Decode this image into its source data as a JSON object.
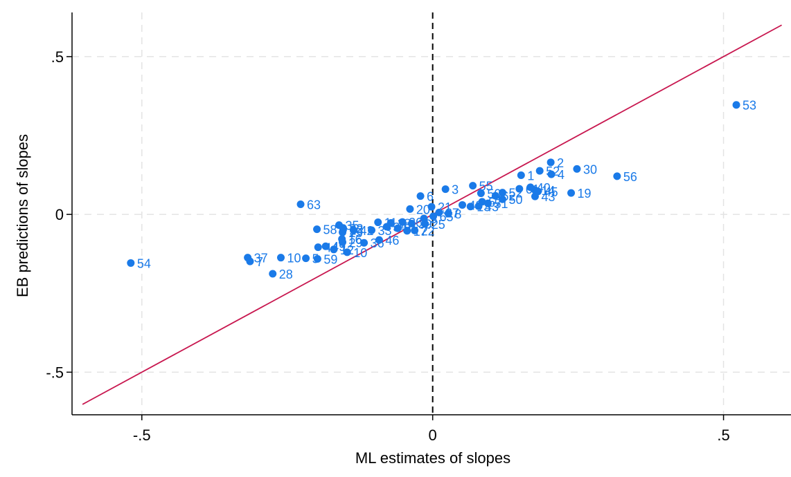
{
  "chart_data": {
    "type": "scatter",
    "xlabel": "ML estimates of slopes",
    "ylabel": "EB predictions of slopes",
    "xlim": [
      -0.62,
      0.616
    ],
    "ylim": [
      -0.635,
      0.64
    ],
    "xticks": [
      {
        "value": -0.5,
        "label": "-.5"
      },
      {
        "value": 0,
        "label": "0"
      },
      {
        "value": 0.5,
        "label": ".5"
      }
    ],
    "yticks": [
      {
        "value": -0.5,
        "label": "-.5"
      },
      {
        "value": 0,
        "label": "0"
      },
      {
        "value": 0.5,
        "label": ".5"
      }
    ],
    "grid": true,
    "reference_line": {
      "type": "identity",
      "color": "#c8174f"
    },
    "vertical_line": {
      "x": 0,
      "style": "dashed",
      "color": "#000000"
    },
    "marker_color": "#1a7ae8",
    "points": [
      {
        "label": "53",
        "x": 0.522,
        "y": 0.347
      },
      {
        "label": "2",
        "x": 0.203,
        "y": 0.165
      },
      {
        "label": "30",
        "x": 0.248,
        "y": 0.144
      },
      {
        "label": "52",
        "x": 0.184,
        "y": 0.138
      },
      {
        "label": "4",
        "x": 0.204,
        "y": 0.127
      },
      {
        "label": "1",
        "x": 0.152,
        "y": 0.124
      },
      {
        "label": "56",
        "x": 0.317,
        "y": 0.121
      },
      {
        "label": "55",
        "x": 0.069,
        "y": 0.091
      },
      {
        "label": "40",
        "x": 0.168,
        "y": 0.086
      },
      {
        "label": "3",
        "x": 0.022,
        "y": 0.08
      },
      {
        "label": "61",
        "x": 0.149,
        "y": 0.081
      },
      {
        "label": "14",
        "x": 0.176,
        "y": 0.077
      },
      {
        "label": "45",
        "x": 0.181,
        "y": 0.073
      },
      {
        "label": "19",
        "x": 0.238,
        "y": 0.068
      },
      {
        "label": "52",
        "x": 0.12,
        "y": 0.069
      },
      {
        "label": "50",
        "x": 0.083,
        "y": 0.067
      },
      {
        "label": "62",
        "x": 0.108,
        "y": 0.059
      },
      {
        "label": "6",
        "x": -0.021,
        "y": 0.058
      },
      {
        "label": "43",
        "x": 0.176,
        "y": 0.057
      },
      {
        "label": "50",
        "x": 0.12,
        "y": 0.048
      },
      {
        "label": "57",
        "x": 0.085,
        "y": 0.04
      },
      {
        "label": "51",
        "x": 0.095,
        "y": 0.035
      },
      {
        "label": "63",
        "x": -0.227,
        "y": 0.032
      },
      {
        "label": "48",
        "x": 0.051,
        "y": 0.03
      },
      {
        "label": "43",
        "x": 0.079,
        "y": 0.026
      },
      {
        "label": "21",
        "x": -0.002,
        "y": 0.024
      },
      {
        "label": "13",
        "x": 0.065,
        "y": 0.025
      },
      {
        "label": "20",
        "x": -0.039,
        "y": 0.017
      },
      {
        "label": "27",
        "x": 0.011,
        "y": 0.006
      },
      {
        "label": "8",
        "x": 0.027,
        "y": 0.003
      },
      {
        "label": "65",
        "x": 0.001,
        "y": -0.006
      },
      {
        "label": "5",
        "x": -0.015,
        "y": -0.013
      },
      {
        "label": "11",
        "x": -0.094,
        "y": -0.025
      },
      {
        "label": "18",
        "x": -0.072,
        "y": -0.027
      },
      {
        "label": "26",
        "x": -0.052,
        "y": -0.024
      },
      {
        "label": "39",
        "x": -0.036,
        "y": -0.029
      },
      {
        "label": "25",
        "x": -0.013,
        "y": -0.03
      },
      {
        "label": "35",
        "x": -0.161,
        "y": -0.034
      },
      {
        "label": "32",
        "x": -0.154,
        "y": -0.043
      },
      {
        "label": "34",
        "x": -0.079,
        "y": -0.039
      },
      {
        "label": "58",
        "x": -0.199,
        "y": -0.047
      },
      {
        "label": "23",
        "x": -0.154,
        "y": -0.049
      },
      {
        "label": "9",
        "x": -0.06,
        "y": -0.044
      },
      {
        "label": "22",
        "x": -0.031,
        "y": -0.051
      },
      {
        "label": "42",
        "x": -0.136,
        "y": -0.05
      },
      {
        "label": "33",
        "x": -0.105,
        "y": -0.05
      },
      {
        "label": "17",
        "x": -0.044,
        "y": -0.052
      },
      {
        "label": "15",
        "x": -0.155,
        "y": -0.057
      },
      {
        "label": "16",
        "x": -0.156,
        "y": -0.078
      },
      {
        "label": "46",
        "x": -0.092,
        "y": -0.081
      },
      {
        "label": "29",
        "x": -0.155,
        "y": -0.088
      },
      {
        "label": "36",
        "x": -0.118,
        "y": -0.09
      },
      {
        "label": "49",
        "x": -0.184,
        "y": -0.101
      },
      {
        "label": "44",
        "x": -0.197,
        "y": -0.104
      },
      {
        "label": "12",
        "x": -0.17,
        "y": -0.111
      },
      {
        "label": "10",
        "x": -0.147,
        "y": -0.12
      },
      {
        "label": "37",
        "x": -0.318,
        "y": -0.137
      },
      {
        "label": "10",
        "x": -0.261,
        "y": -0.137
      },
      {
        "label": "5",
        "x": -0.218,
        "y": -0.139
      },
      {
        "label": "59",
        "x": -0.198,
        "y": -0.141
      },
      {
        "label": "7",
        "x": -0.314,
        "y": -0.149
      },
      {
        "label": "54",
        "x": -0.519,
        "y": -0.154
      },
      {
        "label": "28",
        "x": -0.275,
        "y": -0.188
      }
    ]
  }
}
